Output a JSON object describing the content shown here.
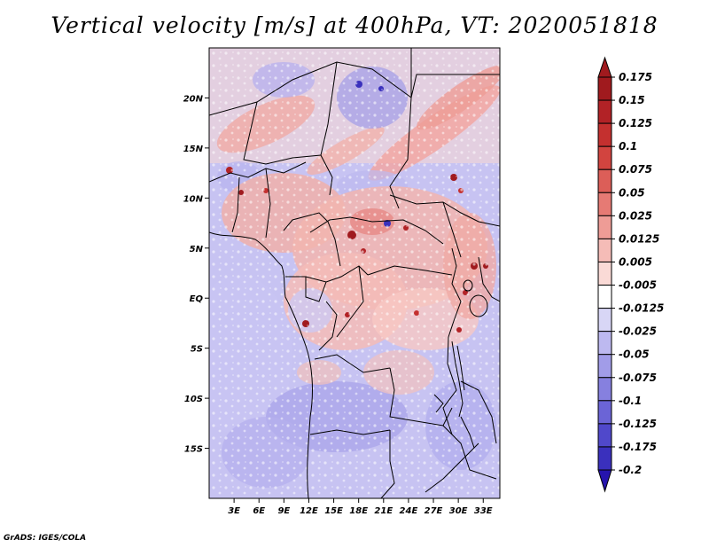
{
  "title": "Vertical velocity [m/s] at 400hPa, VT: 2020051818",
  "credit": "GrADS: IGES/COLA",
  "map": {
    "lat_range": [
      -20,
      25
    ],
    "lon_range": [
      0,
      35
    ],
    "lat_ticks": [
      {
        "value": 20,
        "label": "20N"
      },
      {
        "value": 15,
        "label": "15N"
      },
      {
        "value": 10,
        "label": "10N"
      },
      {
        "value": 5,
        "label": "5N"
      },
      {
        "value": 0,
        "label": "EQ"
      },
      {
        "value": -5,
        "label": "5S"
      },
      {
        "value": -10,
        "label": "10S"
      },
      {
        "value": -15,
        "label": "15S"
      }
    ],
    "lon_ticks": [
      {
        "value": 3,
        "label": "3E"
      },
      {
        "value": 6,
        "label": "6E"
      },
      {
        "value": 9,
        "label": "9E"
      },
      {
        "value": 12,
        "label": "12E"
      },
      {
        "value": 15,
        "label": "15E"
      },
      {
        "value": 18,
        "label": "18E"
      },
      {
        "value": 21,
        "label": "21E"
      },
      {
        "value": 24,
        "label": "24E"
      },
      {
        "value": 27,
        "label": "27E"
      },
      {
        "value": 30,
        "label": "30E"
      },
      {
        "value": 33,
        "label": "33E"
      }
    ]
  },
  "colorbar": {
    "levels": [
      {
        "label": "0.175",
        "color": "#a01a1e"
      },
      {
        "label": "0.15",
        "color": "#b22226"
      },
      {
        "label": "0.125",
        "color": "#c4302f"
      },
      {
        "label": "0.1",
        "color": "#d2443f"
      },
      {
        "label": "0.075",
        "color": "#dc5e58"
      },
      {
        "label": "0.05",
        "color": "#e67a74"
      },
      {
        "label": "0.025",
        "color": "#ee9c96"
      },
      {
        "label": "0.0125",
        "color": "#f5bcb7"
      },
      {
        "label": "0.005",
        "color": "#fadad6"
      },
      {
        "label": "-0.005",
        "color": "#ffffff"
      },
      {
        "label": "-0.0125",
        "color": "#d8d6f6"
      },
      {
        "label": "-0.025",
        "color": "#bdb9f0"
      },
      {
        "label": "-0.05",
        "color": "#a19ce8"
      },
      {
        "label": "-0.075",
        "color": "#8680df"
      },
      {
        "label": "-0.1",
        "color": "#6b64d6"
      },
      {
        "label": "-0.125",
        "color": "#5048cb"
      },
      {
        "label": "-0.175",
        "color": "#3a30bd"
      },
      {
        "label": "-0.2",
        "color": "#2614ad"
      }
    ],
    "top_color": "#a01a1e",
    "bottom_color": "#2614ad"
  }
}
